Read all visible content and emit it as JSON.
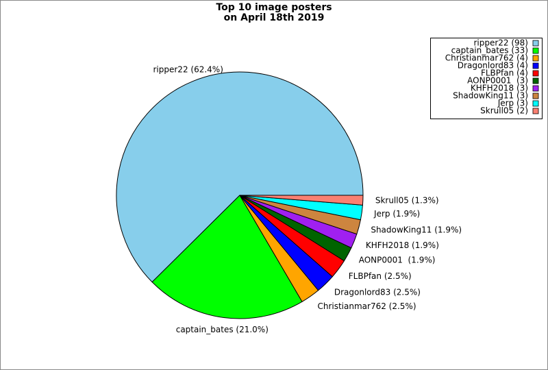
{
  "chart_data": {
    "type": "pie",
    "title": [
      "Top 10 image posters",
      "on April 18th 2019"
    ],
    "values": [
      98,
      33,
      4,
      4,
      4,
      3,
      3,
      3,
      3,
      2
    ],
    "value_labels": [
      "ripper22 (62.4%)",
      "captain_bates (21.0%)",
      "Christianmar762 (2.5%)",
      "Dragonlord83 (2.5%)",
      "FLBPfan (2.5%)",
      "AONP0001  (1.9%)",
      "KHFH2018 (1.9%)",
      "ShadowKing11 (1.9%)",
      "Jerp (1.9%)",
      "Skrull05 (1.3%)"
    ],
    "legend_labels": [
      "ripper22 (98)",
      "captain_bates (33)",
      "Christianmar762 (4)",
      "Dragonlord83 (4)",
      "FLBPfan (4)",
      "AONP0001  (3)",
      "KHFH2018 (3)",
      "ShadowKing11 (3)",
      "Jerp (3)",
      "Skrull05 (2)"
    ],
    "colors": [
      "#87ceeb",
      "#00ff00",
      "#ffa500",
      "#0000ff",
      "#ff0000",
      "#006400",
      "#a020f0",
      "#cd853f",
      "#00ffff",
      "#fa8072"
    ],
    "legend": "upper right"
  }
}
